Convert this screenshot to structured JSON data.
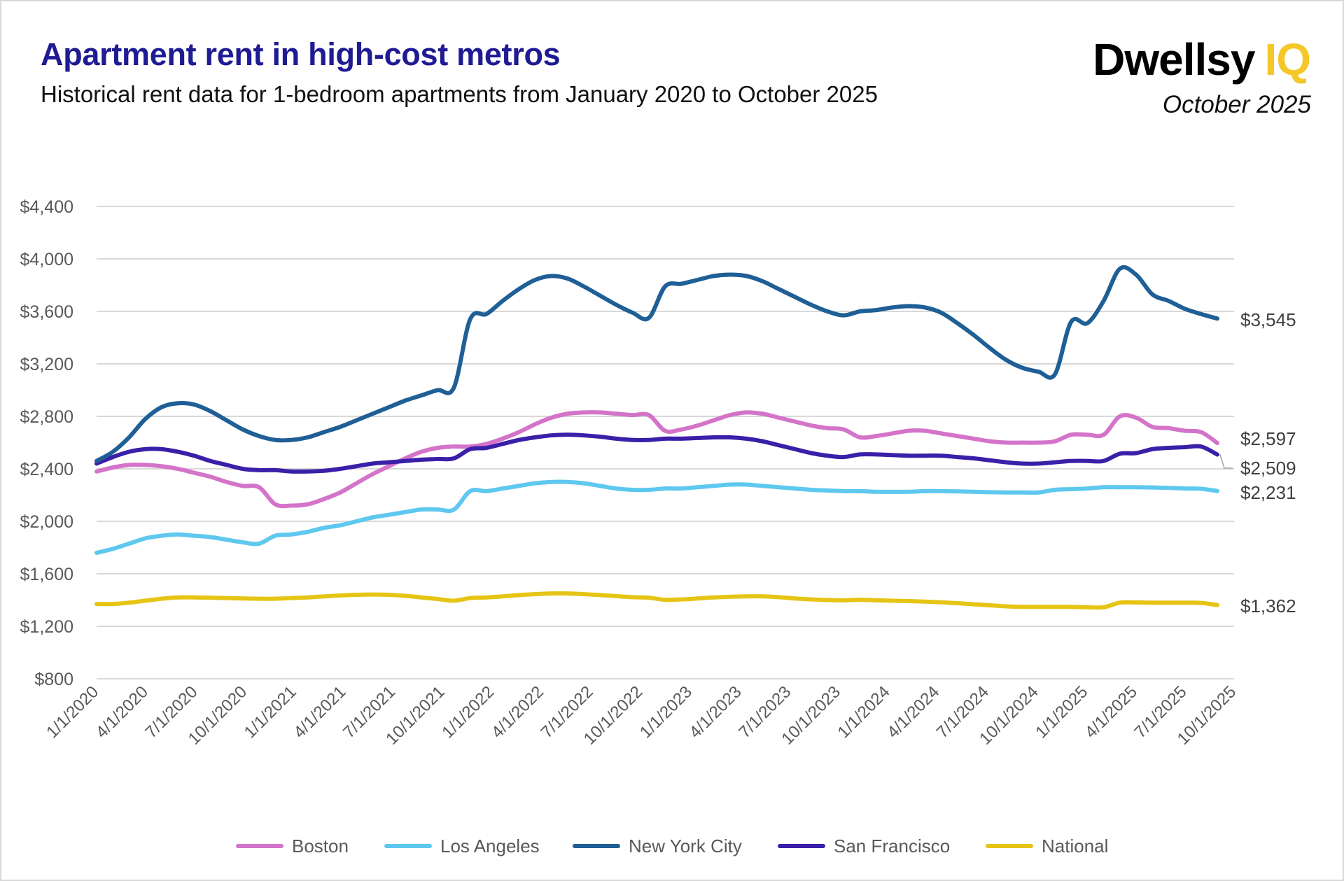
{
  "header": {
    "title": "Apartment rent in high-cost metros",
    "subtitle": "Historical rent data for 1-bedroom apartments from January 2020 to October 2025",
    "logo_text": "Dwellsy",
    "logo_accent": "IQ",
    "date": "October 2025"
  },
  "chart_data": {
    "type": "line",
    "title": "Apartment rent in high-cost metros",
    "subtitle": "Historical rent data for 1-bedroom apartments from January 2020 to October 2025",
    "x_start": "1/1/2020",
    "x_end": "10/1/2025",
    "x_frequency": "monthly",
    "x_tick_labels": [
      "1/1/2020",
      "4/1/2020",
      "7/1/2020",
      "10/1/2020",
      "1/1/2021",
      "4/1/2021",
      "7/1/2021",
      "10/1/2021",
      "1/1/2022",
      "4/1/2022",
      "7/1/2022",
      "10/1/2022",
      "1/1/2023",
      "4/1/2023",
      "7/1/2023",
      "10/1/2023",
      "1/1/2024",
      "4/1/2024",
      "7/1/2024",
      "10/1/2024",
      "1/1/2025",
      "4/1/2025",
      "7/1/2025",
      "10/1/2025"
    ],
    "y_tick_labels": [
      "$800",
      "$1,200",
      "$1,600",
      "$2,000",
      "$2,400",
      "$2,800",
      "$3,200",
      "$3,600",
      "$4,000",
      "$4,400"
    ],
    "y_ticks": [
      800,
      1200,
      1600,
      2000,
      2400,
      2800,
      3200,
      3600,
      4000,
      4400
    ],
    "ylim": [
      800,
      4400
    ],
    "grid": "horizontal",
    "legend_position": "bottom",
    "series": [
      {
        "name": "Boston",
        "color": "#d374c9",
        "end_label": "$2,597",
        "values": [
          2380,
          2410,
          2430,
          2430,
          2420,
          2400,
          2370,
          2340,
          2300,
          2270,
          2260,
          2130,
          2120,
          2130,
          2170,
          2220,
          2290,
          2360,
          2420,
          2480,
          2530,
          2560,
          2570,
          2570,
          2590,
          2630,
          2680,
          2740,
          2790,
          2820,
          2830,
          2830,
          2820,
          2810,
          2810,
          2690,
          2700,
          2730,
          2770,
          2810,
          2830,
          2820,
          2790,
          2760,
          2730,
          2710,
          2700,
          2640,
          2650,
          2670,
          2690,
          2690,
          2670,
          2650,
          2630,
          2610,
          2600,
          2600,
          2600,
          2610,
          2660,
          2660,
          2660,
          2800,
          2790,
          2720,
          2710,
          2690,
          2680,
          2597
        ]
      },
      {
        "name": "Los Angeles",
        "color": "#5ec8ef",
        "end_label": "$2,231",
        "values": [
          1760,
          1790,
          1830,
          1870,
          1890,
          1900,
          1890,
          1880,
          1860,
          1840,
          1830,
          1890,
          1900,
          1920,
          1950,
          1970,
          2000,
          2030,
          2050,
          2070,
          2090,
          2090,
          2090,
          2230,
          2230,
          2250,
          2270,
          2290,
          2300,
          2300,
          2290,
          2270,
          2250,
          2240,
          2240,
          2250,
          2250,
          2260,
          2270,
          2280,
          2280,
          2270,
          2260,
          2250,
          2240,
          2235,
          2230,
          2230,
          2225,
          2225,
          2225,
          2230,
          2230,
          2228,
          2225,
          2222,
          2220,
          2220,
          2220,
          2240,
          2245,
          2250,
          2260,
          2260,
          2260,
          2258,
          2255,
          2250,
          2248,
          2231
        ]
      },
      {
        "name": "New York City",
        "color": "#1f5f96",
        "end_label": "$3,545",
        "values": [
          2460,
          2530,
          2640,
          2780,
          2870,
          2900,
          2890,
          2840,
          2770,
          2700,
          2650,
          2620,
          2620,
          2640,
          2680,
          2720,
          2770,
          2820,
          2870,
          2920,
          2960,
          3000,
          3020,
          3540,
          3580,
          3680,
          3770,
          3840,
          3870,
          3850,
          3790,
          3720,
          3650,
          3590,
          3550,
          3790,
          3810,
          3840,
          3870,
          3880,
          3870,
          3830,
          3770,
          3710,
          3650,
          3600,
          3570,
          3600,
          3610,
          3630,
          3640,
          3630,
          3590,
          3510,
          3420,
          3320,
          3230,
          3170,
          3140,
          3120,
          3520,
          3510,
          3680,
          3925,
          3880,
          3730,
          3680,
          3620,
          3580,
          3545
        ]
      },
      {
        "name": "San Francisco",
        "color": "#3a1fa8",
        "end_label": "$2,509",
        "values": [
          2440,
          2490,
          2530,
          2550,
          2550,
          2530,
          2500,
          2460,
          2430,
          2400,
          2390,
          2390,
          2380,
          2380,
          2385,
          2400,
          2420,
          2440,
          2450,
          2460,
          2470,
          2475,
          2480,
          2550,
          2560,
          2590,
          2620,
          2640,
          2655,
          2660,
          2655,
          2645,
          2630,
          2620,
          2620,
          2630,
          2630,
          2635,
          2640,
          2640,
          2630,
          2610,
          2580,
          2550,
          2520,
          2500,
          2490,
          2510,
          2510,
          2505,
          2500,
          2500,
          2500,
          2490,
          2480,
          2465,
          2450,
          2440,
          2440,
          2450,
          2460,
          2460,
          2460,
          2515,
          2520,
          2550,
          2560,
          2565,
          2570,
          2509
        ]
      },
      {
        "name": "National",
        "color": "#e6c414",
        "end_label": "$1,362",
        "values": [
          1370,
          1370,
          1380,
          1395,
          1410,
          1420,
          1420,
          1418,
          1415,
          1412,
          1410,
          1410,
          1415,
          1420,
          1428,
          1435,
          1440,
          1442,
          1440,
          1432,
          1420,
          1408,
          1395,
          1415,
          1420,
          1428,
          1438,
          1445,
          1450,
          1450,
          1445,
          1438,
          1430,
          1422,
          1418,
          1402,
          1405,
          1412,
          1420,
          1425,
          1428,
          1428,
          1422,
          1412,
          1405,
          1400,
          1398,
          1402,
          1398,
          1395,
          1392,
          1388,
          1383,
          1376,
          1368,
          1360,
          1352,
          1348,
          1348,
          1348,
          1348,
          1345,
          1345,
          1380,
          1382,
          1380,
          1380,
          1380,
          1378,
          1362
        ]
      }
    ]
  }
}
